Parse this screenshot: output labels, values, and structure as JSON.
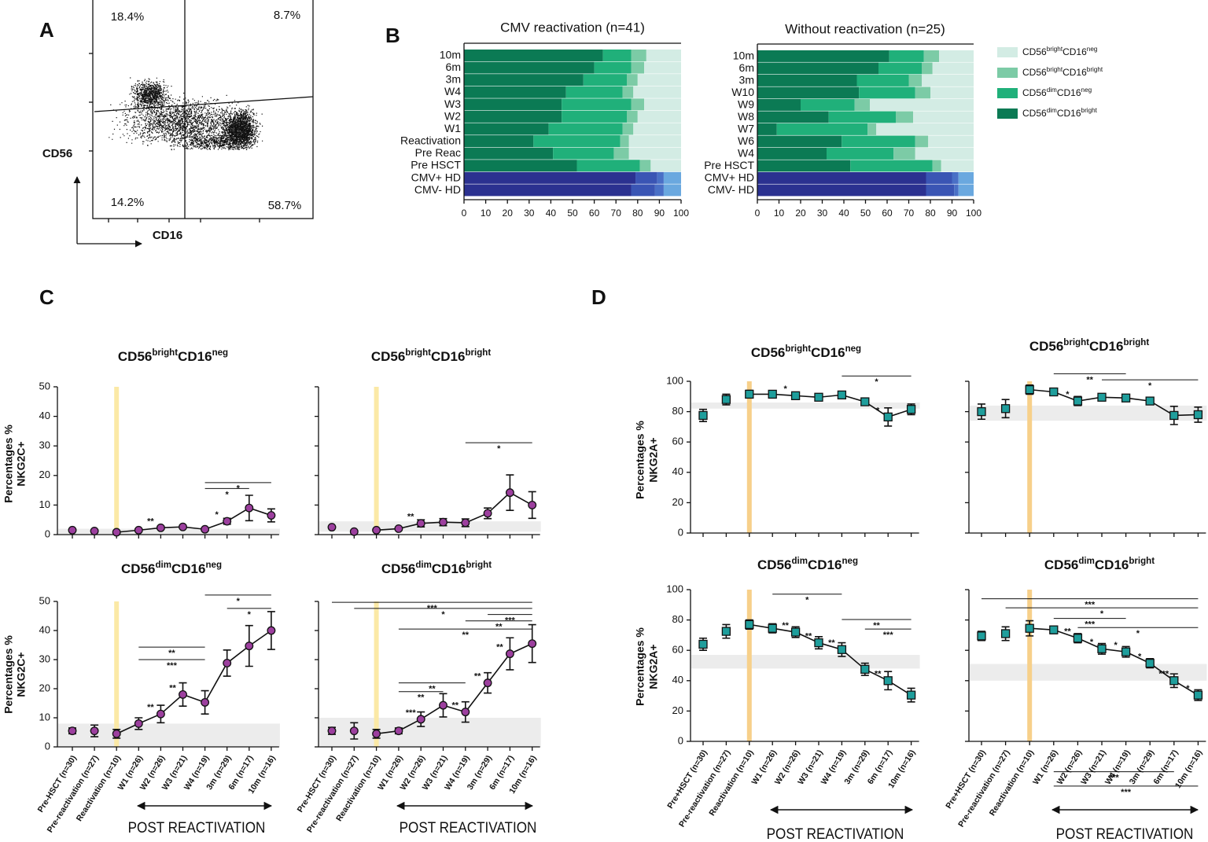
{
  "panel_letters": [
    "A",
    "B",
    "C",
    "D"
  ],
  "chart_data": [
    {
      "type": "quadrant",
      "x_label": "CD16",
      "y_label": "CD56",
      "values": [
        18.4,
        8.7,
        14.2,
        58.7
      ],
      "value_labels": [
        "18.4%",
        "8.7%",
        "14.2%",
        "58.7%"
      ]
    },
    {
      "type": "stacked_barh",
      "title": "CMV reactivation (n=41)",
      "categories": [
        "10m",
        "6m",
        "3m",
        "W4",
        "W3",
        "W2",
        "W1",
        "Reactivation",
        "Pre Reac",
        "Pre HSCT",
        "CMV+ HD",
        "CMV- HD"
      ],
      "highlight_rows": [
        "CMV+ HD",
        "CMV- HD"
      ],
      "series": [
        {
          "color": "#0b7a54",
          "color_hd": "#2b3190",
          "values": [
            64,
            60,
            55,
            47,
            45,
            45,
            39,
            32,
            41,
            52,
            79,
            77
          ]
        },
        {
          "color": "#20b07a",
          "color_hd": "#3a55b4",
          "values": [
            13,
            17,
            20,
            26,
            32,
            30,
            34,
            40,
            28,
            29,
            10,
            11
          ]
        },
        {
          "color": "#7ccba6",
          "color_hd": "#4a70c6",
          "values": [
            7,
            6,
            5,
            5,
            6,
            5,
            5,
            4,
            7,
            5,
            3,
            4
          ]
        },
        {
          "color": "#d3ece4",
          "color_hd": "#6aa8df",
          "values": [
            16,
            17,
            20,
            22,
            17,
            20,
            22,
            24,
            24,
            14,
            8,
            8
          ]
        }
      ],
      "xlim": [
        0,
        100
      ],
      "xticks": [
        0,
        10,
        20,
        30,
        40,
        50,
        60,
        70,
        80,
        90,
        100
      ]
    },
    {
      "type": "stacked_barh",
      "title": "Without reactivation (n=25)",
      "categories": [
        "10m",
        "6m",
        "3m",
        "W10",
        "W9",
        "W8",
        "W7",
        "W6",
        "W4",
        "Pre HSCT",
        "CMV+ HD",
        "CMV- HD"
      ],
      "highlight_rows": [
        "CMV+ HD",
        "CMV- HD"
      ],
      "legend": "right",
      "series": [
        {
          "name": [
            "CD56",
            "dim",
            "CD16",
            "bright"
          ],
          "color": "#0b7a54",
          "color_hd": "#2b3190",
          "values": [
            61,
            56,
            46,
            47,
            20,
            33,
            9,
            39,
            32,
            43,
            78,
            78
          ]
        },
        {
          "name": [
            "CD56",
            "dim",
            "CD16",
            "neg"
          ],
          "color": "#20b07a",
          "color_hd": "#3a55b4",
          "values": [
            16,
            20,
            24,
            26,
            25,
            31,
            42,
            34,
            31,
            38,
            12,
            13
          ]
        },
        {
          "name": [
            "CD56",
            "bright",
            "CD16",
            "bright"
          ],
          "color": "#7ccba6",
          "color_hd": "#4a70c6",
          "values": [
            7,
            5,
            6,
            7,
            7,
            8,
            4,
            6,
            10,
            4,
            3,
            2
          ]
        },
        {
          "name": [
            "CD56",
            "bright",
            "CD16",
            "neg"
          ],
          "color": "#d3ece4",
          "color_hd": "#6aa8df",
          "values": [
            16,
            19,
            24,
            20,
            48,
            28,
            45,
            21,
            27,
            15,
            7,
            7
          ]
        }
      ],
      "xlim": [
        0,
        100
      ],
      "xticks": [
        0,
        10,
        20,
        30,
        40,
        50,
        60,
        70,
        80,
        90,
        100
      ]
    },
    {
      "type": "errorline",
      "title": [
        "CD56",
        "bright",
        "CD16",
        "neg"
      ],
      "y_label": [
        "Percentages %",
        "NKG2C+"
      ],
      "ylim": [
        0,
        50
      ],
      "yticks": [
        0,
        10,
        20,
        30,
        40,
        50
      ],
      "values": [
        1.5,
        1.2,
        0.8,
        1.5,
        2.3,
        2.6,
        1.8,
        4.5,
        9,
        6.5
      ],
      "errors": [
        0.3,
        0.3,
        0.3,
        0.4,
        0.5,
        0.5,
        0.5,
        1,
        4.3,
        2.2
      ],
      "point_labels": [
        null,
        null,
        null,
        null,
        "**",
        null,
        null,
        "*",
        null,
        null
      ],
      "band": [
        0,
        2
      ],
      "brackets": [
        {
          "from": 6,
          "to": 9,
          "y": 17.6,
          "label": "*"
        },
        {
          "from": 6,
          "to": 8,
          "y": 15.6,
          "label": "*"
        }
      ],
      "color": "#9c3f9e",
      "marker": "circle",
      "highlight_color": "#fbe9a6"
    },
    {
      "type": "errorline",
      "title": [
        "CD56",
        "bright",
        "CD16",
        "bright"
      ],
      "ylim": [
        0,
        50
      ],
      "yticks": [
        0,
        10,
        20,
        30,
        40,
        50
      ],
      "yticklabels": false,
      "values": [
        2.5,
        1,
        1.5,
        2,
        3.8,
        4.2,
        4,
        7.2,
        14.2,
        10
      ],
      "errors": [
        0.3,
        0.3,
        0.3,
        0.4,
        1.2,
        1.2,
        1.3,
        1.8,
        6,
        4.5
      ],
      "point_labels": [
        null,
        null,
        null,
        null,
        "**",
        null,
        null,
        null,
        null,
        null
      ],
      "band": [
        1,
        4.5
      ],
      "brackets": [
        {
          "from": 6,
          "to": 9,
          "y": 31.1,
          "label": "*"
        }
      ],
      "color": "#9c3f9e",
      "marker": "circle",
      "highlight_color": "#fbe9a6"
    },
    {
      "type": "errorline",
      "title": [
        "CD56",
        "dim",
        "CD16",
        "neg"
      ],
      "y_label": [
        "Percentages %",
        "NKG2C+"
      ],
      "ylim": [
        0,
        50
      ],
      "yticks": [
        0,
        10,
        20,
        30,
        40,
        50
      ],
      "categories": [
        "Pre-HSCT (n=30)",
        "Pre-reactivation (n=27)",
        "Reactivation (n=10)",
        "W1 (n=26)",
        "W2 (n=26)",
        "W3 (n=21)",
        "W4 (n=19)",
        "3m (n=29)",
        "6m (n=17)",
        "10m (n=16)"
      ],
      "values": [
        5.5,
        5.5,
        4.5,
        8,
        11.3,
        18,
        15.3,
        28.8,
        34.7,
        40
      ],
      "errors": [
        1,
        2,
        1.5,
        2,
        3,
        4,
        4,
        4.5,
        7,
        6.5
      ],
      "point_labels": [
        null,
        null,
        null,
        null,
        "**",
        "**",
        null,
        null,
        null,
        null
      ],
      "band": [
        0,
        8
      ],
      "brackets": [
        {
          "from": 3,
          "to": 6,
          "y": 34.3,
          "label": "**"
        },
        {
          "from": 3,
          "to": 6,
          "y": 30,
          "label": "***"
        },
        {
          "from": 6,
          "to": 9,
          "y": 52.2,
          "label": "*"
        },
        {
          "from": 7,
          "to": 9,
          "y": 47.6,
          "label": "*"
        }
      ],
      "annotation": "POST REACTIVATION",
      "color": "#9c3f9e",
      "marker": "circle",
      "highlight_color": "#fbe9a6"
    },
    {
      "type": "errorline",
      "title": [
        "CD56",
        "dim",
        "CD16",
        "bright"
      ],
      "ylim": [
        0,
        50
      ],
      "yticks": [
        0,
        10,
        20,
        30,
        40,
        50
      ],
      "yticklabels": false,
      "categories": [
        "Pre-HSCT (n=30)",
        "Pre-reactivation (n=27)",
        "Reactivation (n=10)",
        "W1 (n=26)",
        "W2 (n=26)",
        "W3 (n=21)",
        "W4 (n=19)",
        "3m (n=29)",
        "6m (n=17)",
        "10m (n=16)"
      ],
      "values": [
        5.5,
        5.5,
        4.5,
        5.5,
        9.5,
        14.3,
        12,
        22,
        32,
        35.5
      ],
      "errors": [
        1.2,
        2.8,
        1.5,
        1,
        2.5,
        4,
        3.5,
        3.5,
        5.5,
        6.5
      ],
      "point_labels": [
        null,
        null,
        null,
        null,
        "***",
        null,
        "**",
        "**",
        "**",
        null
      ],
      "band": [
        0,
        10
      ],
      "brackets": [
        {
          "from": 0,
          "to": 9,
          "y": 49.7,
          "label": "***"
        },
        {
          "from": 1,
          "to": 9,
          "y": 47.6,
          "label": "*"
        },
        {
          "from": 7,
          "to": 9,
          "y": 45.5,
          "label": "***"
        },
        {
          "from": 6,
          "to": 9,
          "y": 43.3,
          "label": "**"
        },
        {
          "from": 3,
          "to": 9,
          "y": 40.5,
          "label": "**"
        },
        {
          "from": 3,
          "to": 6,
          "y": 22,
          "label": "**"
        },
        {
          "from": 3,
          "to": 5,
          "y": 19,
          "label": "**"
        }
      ],
      "annotation": "POST REACTIVATION",
      "color": "#9c3f9e",
      "marker": "circle",
      "highlight_color": "#fbe9a6"
    },
    {
      "type": "errorline",
      "title": [
        "CD56",
        "bright",
        "CD16",
        "neg"
      ],
      "y_label": [
        "Percentages %",
        "NKG2A+"
      ],
      "ylim": [
        0,
        100
      ],
      "yticks": [
        0,
        20,
        40,
        60,
        80,
        100
      ],
      "values": [
        77.5,
        88,
        91.5,
        91.5,
        90.5,
        89.5,
        91,
        86.5,
        76.5,
        81.5
      ],
      "errors": [
        4,
        3.5,
        2.5,
        2,
        1.5,
        1.5,
        1.5,
        2,
        6,
        3.5
      ],
      "point_labels": [
        null,
        null,
        null,
        null,
        "*",
        null,
        null,
        null,
        "*",
        null
      ],
      "band": [
        82,
        86
      ],
      "brackets": [
        {
          "from": 6,
          "to": 9,
          "y": 103.5,
          "label": "*"
        }
      ],
      "color": "#1f9e9c",
      "marker": "square",
      "highlight_color": "#f7d08a"
    },
    {
      "type": "errorline",
      "title": [
        "CD56",
        "bright",
        "CD16",
        "bright"
      ],
      "ylim": [
        0,
        100
      ],
      "yticks": [
        0,
        20,
        40,
        60,
        80,
        100
      ],
      "yticklabels": false,
      "values": [
        80,
        82,
        94.5,
        93,
        87,
        89.5,
        89,
        87,
        77.5,
        78
      ],
      "errors": [
        5,
        6,
        3,
        1.5,
        3,
        1.5,
        1.5,
        2,
        6,
        5
      ],
      "point_labels": [
        null,
        null,
        null,
        null,
        "*",
        null,
        null,
        null,
        null,
        null
      ],
      "band": [
        74,
        84
      ],
      "brackets": [
        {
          "from": 3,
          "to": 6,
          "y": 105,
          "label": "**"
        },
        {
          "from": 5,
          "to": 9,
          "y": 101,
          "label": "*"
        }
      ],
      "color": "#1f9e9c",
      "marker": "square",
      "highlight_color": "#f7d08a"
    },
    {
      "type": "errorline",
      "title": [
        "CD56",
        "dim",
        "CD16",
        "neg"
      ],
      "y_label": [
        "Percentages %",
        "NKG2A+"
      ],
      "ylim": [
        0,
        100
      ],
      "yticks": [
        0,
        20,
        40,
        60,
        80,
        100
      ],
      "categories": [
        "Pre+HSCT (n=30)",
        "Pre-reactivation (n=27)",
        "Reactivation (n=10)",
        "W1 (n=26)",
        "W2 (n=26)",
        "W3 (n=21)",
        "W4 (n=19)",
        "3m (n=29)",
        "6m (n=17)",
        "10m (n=16)"
      ],
      "values": [
        64,
        72.5,
        77,
        74.5,
        72,
        65,
        60.5,
        47.5,
        40,
        30.5
      ],
      "errors": [
        4,
        4.5,
        3,
        3,
        3.5,
        4,
        4.5,
        4,
        6,
        4.5
      ],
      "point_labels": [
        null,
        null,
        null,
        null,
        "**",
        "**",
        "**",
        null,
        "**",
        null
      ],
      "band": [
        48,
        57
      ],
      "brackets": [
        {
          "from": 3,
          "to": 6,
          "y": 97,
          "label": "*"
        },
        {
          "from": 6,
          "to": 9,
          "y": 80.3,
          "label": "**"
        },
        {
          "from": 7,
          "to": 9,
          "y": 74,
          "label": "***"
        }
      ],
      "annotation": "POST REACTIVATION",
      "color": "#1f9e9c",
      "marker": "square",
      "highlight_color": "#f7d08a"
    },
    {
      "type": "errorline",
      "title": [
        "CD56",
        "dim",
        "CD16",
        "bright"
      ],
      "ylim": [
        0,
        100
      ],
      "yticks": [
        0,
        20,
        40,
        60,
        80,
        100
      ],
      "yticklabels": false,
      "categories": [
        "Pre+HSCT (n=30)",
        "Pre-reactivation (n=27)",
        "Reactivation (n=10)",
        "W1 (n=26)",
        "W2 (n=26)",
        "W3 (n=21)",
        "W4 (n=19)",
        "3m (n=29)",
        "6m (n=17)",
        "10m (n=16)"
      ],
      "values": [
        69.5,
        71,
        74.5,
        73.5,
        68,
        61,
        59,
        51.5,
        40,
        30.5
      ],
      "errors": [
        3,
        4.5,
        5,
        2.5,
        3,
        3.5,
        3.5,
        3,
        4.5,
        3.5
      ],
      "point_labels": [
        null,
        null,
        null,
        null,
        "**",
        "*",
        "*",
        "*",
        "***",
        "*"
      ],
      "band": [
        40,
        51
      ],
      "brackets": [
        {
          "from": 0,
          "to": 9,
          "y": 94,
          "label": "***"
        },
        {
          "from": 1,
          "to": 9,
          "y": 88,
          "label": "*"
        },
        {
          "from": 3,
          "to": 6,
          "y": 81,
          "label": "***"
        },
        {
          "from": 4,
          "to": 9,
          "y": 75,
          "label": "*"
        },
        {
          "from": 3,
          "to": 8,
          "y": -20,
          "label": "***"
        },
        {
          "from": 3,
          "to": 9,
          "y": -29.5,
          "label": "***"
        }
      ],
      "annotation": "POST REACTIVATION",
      "color": "#1f9e9c",
      "marker": "square",
      "highlight_color": "#f7d08a"
    }
  ]
}
